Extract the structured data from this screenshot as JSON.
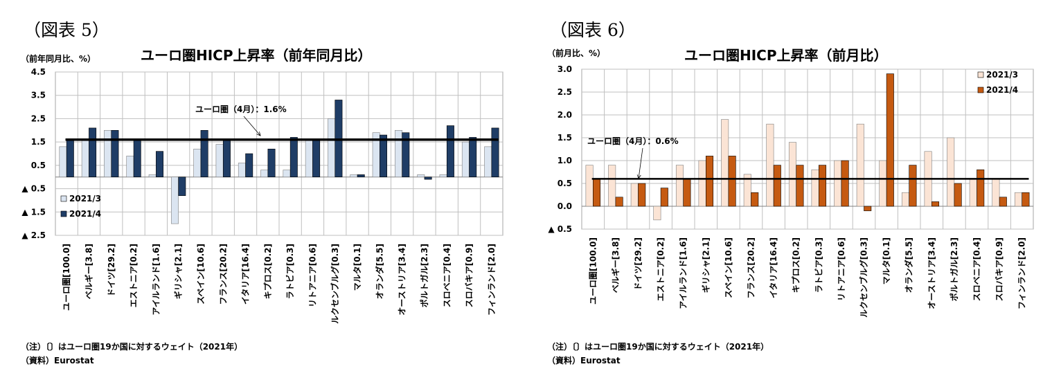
{
  "chart_data": [
    {
      "type": "bar",
      "figure_label": "（図表 5）",
      "title": "ユーロ圏HICP上昇率（前年同月比）",
      "ylabel": "（前年同月比、%）",
      "ylim": [
        -2.5,
        4.5
      ],
      "yticks": [
        4.5,
        3.5,
        2.5,
        1.5,
        0.5,
        -0.5,
        -1.5,
        -2.5
      ],
      "yticklabels": [
        "4.5",
        "3.5",
        "2.5",
        "1.5",
        "0.5",
        "▲ 0.5",
        "▲ 1.5",
        "▲ 2.5"
      ],
      "grid": true,
      "legend_position": "bottom-left",
      "categories": [
        "ユーロ圏[100.0]",
        "ベルギー[3.8]",
        "ドイツ[29.2]",
        "エストニア[0.2]",
        "アイルランド[1.6]",
        "ギリシャ[2.1]",
        "スペイン[10.6]",
        "フランス[20.2]",
        "イタリア[16.4]",
        "キプロス[0.2]",
        "ラトビア[0.3]",
        "リトアニア[0.6]",
        "ルクセンブルグ[0.3]",
        "マルタ[0.1]",
        "オランダ[5.5]",
        "オーストリア[3.4]",
        "ポルトガル[2.3]",
        "スロベニア[0.4]",
        "スロバキア[0.9]",
        "フィンランド[2.0]"
      ],
      "series": [
        {
          "name": "2021/3",
          "color": "#dbe5f1",
          "values": [
            1.3,
            1.6,
            2.0,
            0.9,
            0.1,
            -2.0,
            1.2,
            1.4,
            0.6,
            0.3,
            0.3,
            1.6,
            2.5,
            0.1,
            1.9,
            2.0,
            0.1,
            0.1,
            1.5,
            1.3
          ]
        },
        {
          "name": "2021/4",
          "color": "#1f3d66",
          "values": [
            1.6,
            2.1,
            2.0,
            1.6,
            1.1,
            -0.8,
            2.0,
            1.6,
            1.0,
            1.2,
            1.7,
            1.6,
            3.3,
            0.1,
            1.8,
            1.9,
            -0.1,
            2.2,
            1.7,
            2.1
          ]
        }
      ],
      "reference_line": {
        "value": 1.6,
        "label": "ユーロ圏（4月）：1.6%"
      },
      "notes": [
        "（注）〔〕はユーロ圏19か国に対するウェイト（2021年）",
        "（資料）Eurostat"
      ]
    },
    {
      "type": "bar",
      "figure_label": "（図表 6）",
      "title": "ユーロ圏HICP上昇率（前月比）",
      "ylabel": "（前月比、%）",
      "ylim": [
        -0.5,
        3.0
      ],
      "yticks": [
        3.0,
        2.5,
        2.0,
        1.5,
        1.0,
        0.5,
        0.0,
        -0.5
      ],
      "yticklabels": [
        "3.0",
        "2.5",
        "2.0",
        "1.5",
        "1.0",
        "0.5",
        "0.0",
        "▲ 0.5"
      ],
      "grid": true,
      "legend_position": "top-right",
      "categories": [
        "ユーロ圏[100.0]",
        "ベルギー[3.8]",
        "ドイツ[29.2]",
        "エストニア[0.2]",
        "アイルランド[1.6]",
        "ギリシャ[2.1]",
        "スペイン[10.6]",
        "フランス[20.2]",
        "イタリア[16.4]",
        "キプロス[0.2]",
        "ラトビア[0.3]",
        "リトアニア[0.6]",
        "ルクセンブルグ[0.3]",
        "マルタ[0.1]",
        "オランダ[5.5]",
        "オーストリア[3.4]",
        "ポルトガル[2.3]",
        "スロベニア[0.4]",
        "スロバキア[0.9]",
        "フィンランド[2.0]"
      ],
      "series": [
        {
          "name": "2021/3",
          "color": "#fbe4d5",
          "values": [
            0.9,
            0.9,
            0.5,
            -0.3,
            0.9,
            1.0,
            1.9,
            0.7,
            1.8,
            1.4,
            0.8,
            1.0,
            1.8,
            1.0,
            0.3,
            1.2,
            1.5,
            0.6,
            0.6,
            0.3
          ]
        },
        {
          "name": "2021/4",
          "color": "#c55a11",
          "values": [
            0.6,
            0.2,
            0.5,
            0.4,
            0.6,
            1.1,
            1.1,
            0.3,
            0.9,
            0.9,
            0.9,
            1.0,
            -0.1,
            2.9,
            0.9,
            0.1,
            0.5,
            0.8,
            0.2,
            0.3
          ]
        }
      ],
      "reference_line": {
        "value": 0.6,
        "label": "ユーロ圏（4月）：0.6%"
      },
      "notes": [
        "（注）〔〕はユーロ圏19か国に対するウェイト（2021年）",
        "（資料）Eurostat"
      ]
    }
  ]
}
